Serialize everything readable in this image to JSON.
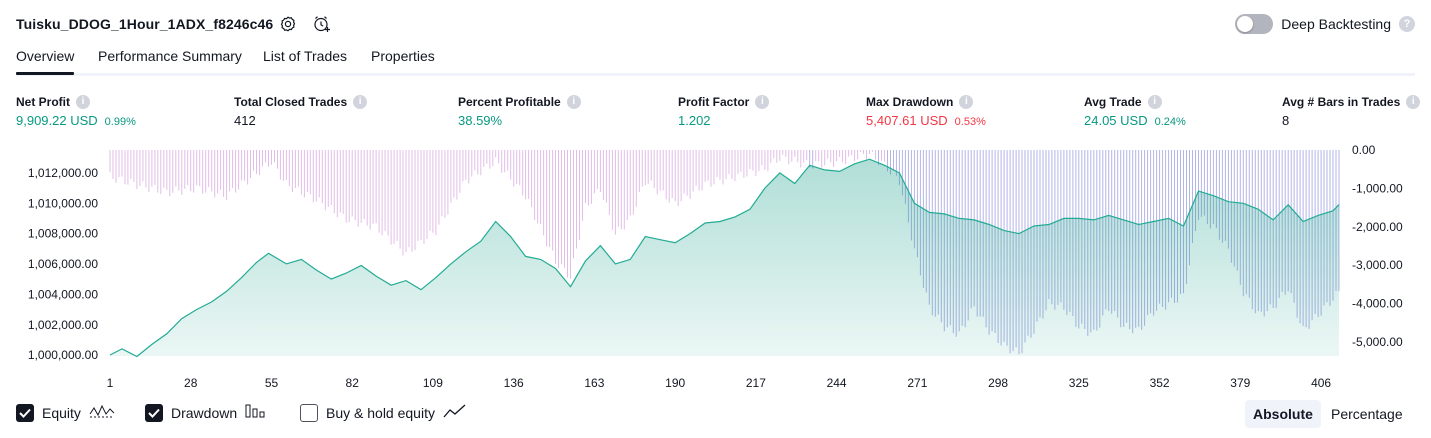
{
  "header": {
    "strategy_name": "Tuisku_DDOG_1Hour_1ADX_f8246c46",
    "settings_icon": "settings-gear-icon",
    "alert_icon": "add-alert-clock-icon",
    "deep_backtesting_label": "Deep Backtesting",
    "deep_backtesting_enabled": false,
    "help_icon": "help-question-icon",
    "help_glyph": "?"
  },
  "tabs": [
    {
      "label": "Overview",
      "active": true
    },
    {
      "label": "Performance Summary",
      "active": false
    },
    {
      "label": "List of Trades",
      "active": false
    },
    {
      "label": "Properties",
      "active": false
    }
  ],
  "metrics": [
    {
      "label": "Net Profit",
      "value": "9,909.22 USD",
      "pct": "0.99%",
      "color": "#089981"
    },
    {
      "label": "Total Closed Trades",
      "value": "412",
      "pct": "",
      "color": "#131722"
    },
    {
      "label": "Percent Profitable",
      "value": "38.59%",
      "pct": "",
      "color": "#089981"
    },
    {
      "label": "Profit Factor",
      "value": "1.202",
      "pct": "",
      "color": "#089981"
    },
    {
      "label": "Max Drawdown",
      "value": "5,407.61 USD",
      "pct": "0.53%",
      "color": "#f23645"
    },
    {
      "label": "Avg Trade",
      "value": "24.05 USD",
      "pct": "0.24%",
      "color": "#089981"
    },
    {
      "label": "Avg # Bars in Trades",
      "value": "8",
      "pct": "",
      "color": "#131722"
    }
  ],
  "info_icon_glyph": "i",
  "chart_data": {
    "type": "area",
    "x_label": "Trade #",
    "x_ticks": [
      "1",
      "28",
      "55",
      "82",
      "109",
      "136",
      "163",
      "190",
      "217",
      "244",
      "271",
      "298",
      "325",
      "352",
      "379",
      "406"
    ],
    "x_range": [
      1,
      412
    ],
    "y_left_ticks": [
      "1,012,000.00",
      "1,010,000.00",
      "1,008,000.00",
      "1,006,000.00",
      "1,004,000.00",
      "1,002,000.00",
      "1,000,000.00"
    ],
    "y_left_range": [
      1000000,
      1013000
    ],
    "y_right_ticks": [
      "0.00",
      "-1,000.00",
      "-2,000.00",
      "-3,000.00",
      "-4,000.00",
      "-5,000.00"
    ],
    "y_right_range": [
      -5400,
      0
    ],
    "colors": {
      "equity_line": "#22ab94",
      "equity_fill": "#089981",
      "drawdown_positive_region": "#e1bee7",
      "drawdown_negative_region": "#b2b5e8"
    },
    "series": [
      {
        "name": "Equity",
        "type": "line",
        "points": [
          [
            1,
            1000000
          ],
          [
            5,
            1000400
          ],
          [
            10,
            999900
          ],
          [
            15,
            1000700
          ],
          [
            20,
            1001400
          ],
          [
            25,
            1002400
          ],
          [
            30,
            1003000
          ],
          [
            35,
            1003500
          ],
          [
            40,
            1004200
          ],
          [
            45,
            1005100
          ],
          [
            50,
            1006100
          ],
          [
            54,
            1006700
          ],
          [
            60,
            1006000
          ],
          [
            65,
            1006300
          ],
          [
            70,
            1005600
          ],
          [
            75,
            1005000
          ],
          [
            80,
            1005400
          ],
          [
            85,
            1005900
          ],
          [
            90,
            1005200
          ],
          [
            95,
            1004600
          ],
          [
            100,
            1004900
          ],
          [
            105,
            1004300
          ],
          [
            110,
            1005100
          ],
          [
            115,
            1006000
          ],
          [
            120,
            1006800
          ],
          [
            125,
            1007500
          ],
          [
            130,
            1008800
          ],
          [
            135,
            1007800
          ],
          [
            140,
            1006500
          ],
          [
            145,
            1006300
          ],
          [
            150,
            1005700
          ],
          [
            155,
            1004500
          ],
          [
            160,
            1006200
          ],
          [
            165,
            1007200
          ],
          [
            170,
            1006000
          ],
          [
            175,
            1006300
          ],
          [
            180,
            1007800
          ],
          [
            185,
            1007600
          ],
          [
            190,
            1007400
          ],
          [
            195,
            1008000
          ],
          [
            200,
            1008700
          ],
          [
            205,
            1008800
          ],
          [
            210,
            1009100
          ],
          [
            215,
            1009600
          ],
          [
            220,
            1011000
          ],
          [
            225,
            1012000
          ],
          [
            230,
            1011300
          ],
          [
            235,
            1012500
          ],
          [
            240,
            1012200
          ],
          [
            245,
            1012100
          ],
          [
            250,
            1012600
          ],
          [
            255,
            1012900
          ],
          [
            260,
            1012500
          ],
          [
            265,
            1012000
          ],
          [
            270,
            1010000
          ],
          [
            275,
            1009400
          ],
          [
            280,
            1009300
          ],
          [
            285,
            1009000
          ],
          [
            290,
            1008900
          ],
          [
            295,
            1008600
          ],
          [
            300,
            1008200
          ],
          [
            305,
            1008000
          ],
          [
            310,
            1008500
          ],
          [
            315,
            1008600
          ],
          [
            320,
            1009000
          ],
          [
            325,
            1009000
          ],
          [
            330,
            1008900
          ],
          [
            335,
            1009200
          ],
          [
            340,
            1008900
          ],
          [
            345,
            1008600
          ],
          [
            350,
            1008800
          ],
          [
            355,
            1009000
          ],
          [
            360,
            1008500
          ],
          [
            365,
            1010800
          ],
          [
            370,
            1010500
          ],
          [
            375,
            1010100
          ],
          [
            380,
            1010000
          ],
          [
            385,
            1009600
          ],
          [
            390,
            1008900
          ],
          [
            395,
            1009900
          ],
          [
            400,
            1008800
          ],
          [
            405,
            1009200
          ],
          [
            410,
            1009500
          ],
          [
            412,
            1009909
          ]
        ]
      },
      {
        "name": "Drawdown",
        "type": "bars",
        "points": [
          [
            1,
            -700
          ],
          [
            10,
            -900
          ],
          [
            20,
            -1100
          ],
          [
            30,
            -1000
          ],
          [
            40,
            -1200
          ],
          [
            50,
            -600
          ],
          [
            55,
            -300
          ],
          [
            60,
            -900
          ],
          [
            70,
            -1300
          ],
          [
            80,
            -1800
          ],
          [
            90,
            -2000
          ],
          [
            100,
            -2700
          ],
          [
            110,
            -2100
          ],
          [
            120,
            -800
          ],
          [
            130,
            -300
          ],
          [
            140,
            -1200
          ],
          [
            150,
            -2900
          ],
          [
            155,
            -3300
          ],
          [
            160,
            -1500
          ],
          [
            165,
            -1000
          ],
          [
            170,
            -2200
          ],
          [
            175,
            -1800
          ],
          [
            180,
            -800
          ],
          [
            190,
            -1400
          ],
          [
            200,
            -900
          ],
          [
            210,
            -700
          ],
          [
            220,
            -500
          ],
          [
            225,
            -200
          ],
          [
            235,
            -400
          ],
          [
            245,
            -300
          ],
          [
            255,
            -100
          ],
          [
            260,
            -400
          ],
          [
            265,
            -800
          ],
          [
            270,
            -2600
          ],
          [
            275,
            -4100
          ],
          [
            280,
            -4600
          ],
          [
            285,
            -4800
          ],
          [
            290,
            -4100
          ],
          [
            295,
            -4700
          ],
          [
            300,
            -5100
          ],
          [
            305,
            -5300
          ],
          [
            310,
            -4700
          ],
          [
            315,
            -4000
          ],
          [
            320,
            -4100
          ],
          [
            325,
            -4600
          ],
          [
            330,
            -4800
          ],
          [
            335,
            -4100
          ],
          [
            340,
            -4600
          ],
          [
            345,
            -4700
          ],
          [
            350,
            -4200
          ],
          [
            355,
            -4000
          ],
          [
            360,
            -3800
          ],
          [
            365,
            -1700
          ],
          [
            370,
            -2000
          ],
          [
            375,
            -2600
          ],
          [
            380,
            -3700
          ],
          [
            385,
            -4300
          ],
          [
            390,
            -4100
          ],
          [
            395,
            -3600
          ],
          [
            400,
            -4700
          ],
          [
            405,
            -4300
          ],
          [
            412,
            -3700
          ]
        ]
      },
      {
        "name": "Buy & hold equity",
        "type": "line",
        "visible": false
      }
    ]
  },
  "footer": {
    "legend": [
      {
        "label": "Equity",
        "checked": true,
        "icon": "equity-wave-icon"
      },
      {
        "label": "Drawdown",
        "checked": true,
        "icon": "drawdown-bars-icon"
      },
      {
        "label": "Buy & hold equity",
        "checked": false,
        "icon": "buy-hold-line-icon"
      }
    ],
    "scale_options": [
      {
        "label": "Absolute",
        "active": true
      },
      {
        "label": "Percentage",
        "active": false
      }
    ]
  }
}
